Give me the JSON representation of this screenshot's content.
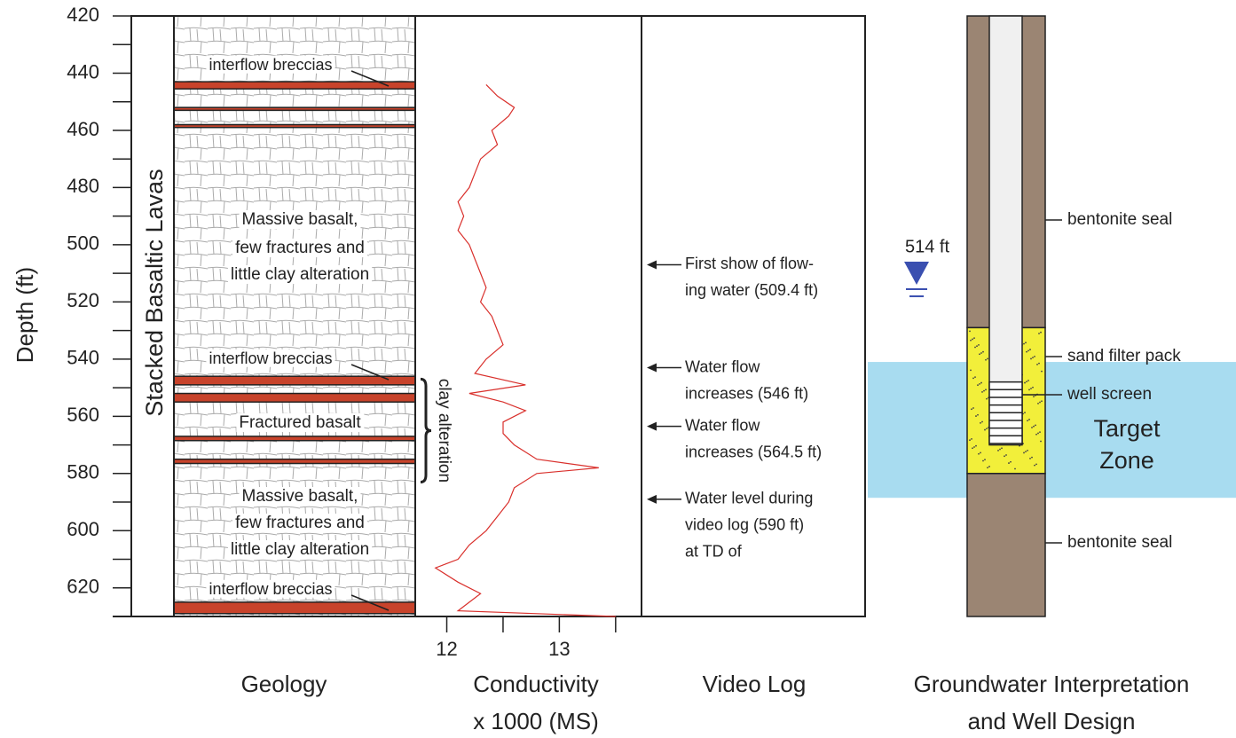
{
  "chart_data": {
    "type": "line",
    "ylabel": "Depth (ft)",
    "ylim": [
      420,
      630
    ],
    "yticks": [
      420,
      440,
      460,
      480,
      500,
      520,
      540,
      560,
      580,
      600,
      620
    ],
    "yminor_ticks": [
      430,
      450,
      470,
      490,
      510,
      530,
      550,
      570,
      590,
      610
    ],
    "xlabel": [
      "Conductivity",
      "x 1000 (MS)"
    ],
    "xlim": [
      11.72,
      13.73
    ],
    "xticks": [
      12,
      13
    ],
    "xminor_ticks": [
      12.5,
      13.5
    ],
    "color": "#d9302c",
    "depth": [
      444,
      448,
      452,
      455,
      460,
      465,
      470,
      475,
      480,
      485,
      490,
      495,
      500,
      505,
      510,
      515,
      520,
      525,
      530,
      535,
      540,
      545,
      549,
      552,
      555,
      558,
      562,
      566,
      570,
      575,
      578,
      580,
      585,
      590,
      595,
      600,
      605,
      610,
      613,
      618,
      622,
      625,
      628,
      630
    ],
    "values": [
      12.35,
      12.45,
      12.6,
      12.55,
      12.4,
      12.45,
      12.3,
      12.25,
      12.2,
      12.1,
      12.15,
      12.1,
      12.2,
      12.25,
      12.3,
      12.35,
      12.3,
      12.4,
      12.45,
      12.5,
      12.35,
      12.25,
      12.7,
      12.2,
      12.5,
      12.7,
      12.5,
      12.5,
      12.6,
      12.8,
      13.35,
      12.8,
      12.6,
      12.55,
      12.45,
      12.35,
      12.2,
      12.1,
      11.9,
      12.1,
      12.3,
      12.2,
      12.1,
      13.5
    ],
    "geology": {
      "title": "Geology",
      "column_label": "Stacked Basaltic Lavas",
      "breccia_color": "#c8432b",
      "breccias": [
        [
          443,
          445.5
        ],
        [
          452,
          453
        ],
        [
          458,
          459
        ],
        [
          546,
          549
        ],
        [
          552,
          555
        ],
        [
          567,
          568.5
        ],
        [
          575,
          576.5
        ],
        [
          625,
          629
        ]
      ],
      "units": [
        [
          "Massive basalt,",
          "few fractures and",
          "little clay alteration"
        ],
        [
          "Fractured basalt"
        ],
        [
          "Massive basalt,",
          "few fractures and",
          "little clay alteration"
        ]
      ],
      "breccia_labels": [
        "interflow breccias",
        "interflow breccias",
        "interflow breccias"
      ],
      "clay_alteration": {
        "label": "clay alteration",
        "range": [
          547,
          583
        ]
      }
    },
    "video_log": {
      "title": "Video Log",
      "notes": [
        {
          "lines": [
            "First show of flow-",
            "ing water (509.4 ft)"
          ],
          "depth": 507
        },
        {
          "lines": [
            "Water flow",
            "increases (546 ft)"
          ],
          "depth": 543
        },
        {
          "lines": [
            "Water flow",
            "increases (564.5 ft)"
          ],
          "depth": 563.5
        },
        {
          "lines": [
            "Water level during",
            "video log (590 ft)",
            "at TD of"
          ],
          "depth": 589
        }
      ]
    },
    "well": {
      "title": [
        "Groundwater Interpretation",
        "and Well Design"
      ],
      "seal_top": [
        420,
        529
      ],
      "filter_pack": [
        529,
        580
      ],
      "seal_bottom": [
        580,
        630
      ],
      "casing_bottom": 570,
      "screen": [
        548,
        569.5
      ],
      "target_zone": {
        "label": [
          "Target",
          "Zone"
        ],
        "range": [
          541,
          588.5
        ]
      },
      "water_level": {
        "value": 514,
        "label": "514 ft"
      },
      "callouts": [
        "bentonite seal",
        "sand filter pack",
        "well screen",
        "bentonite seal"
      ],
      "colors": {
        "seal": "#9b8573",
        "sand": "#f2ef3a",
        "target": "#a8dcf0",
        "water": "#3a4fb0"
      }
    }
  }
}
